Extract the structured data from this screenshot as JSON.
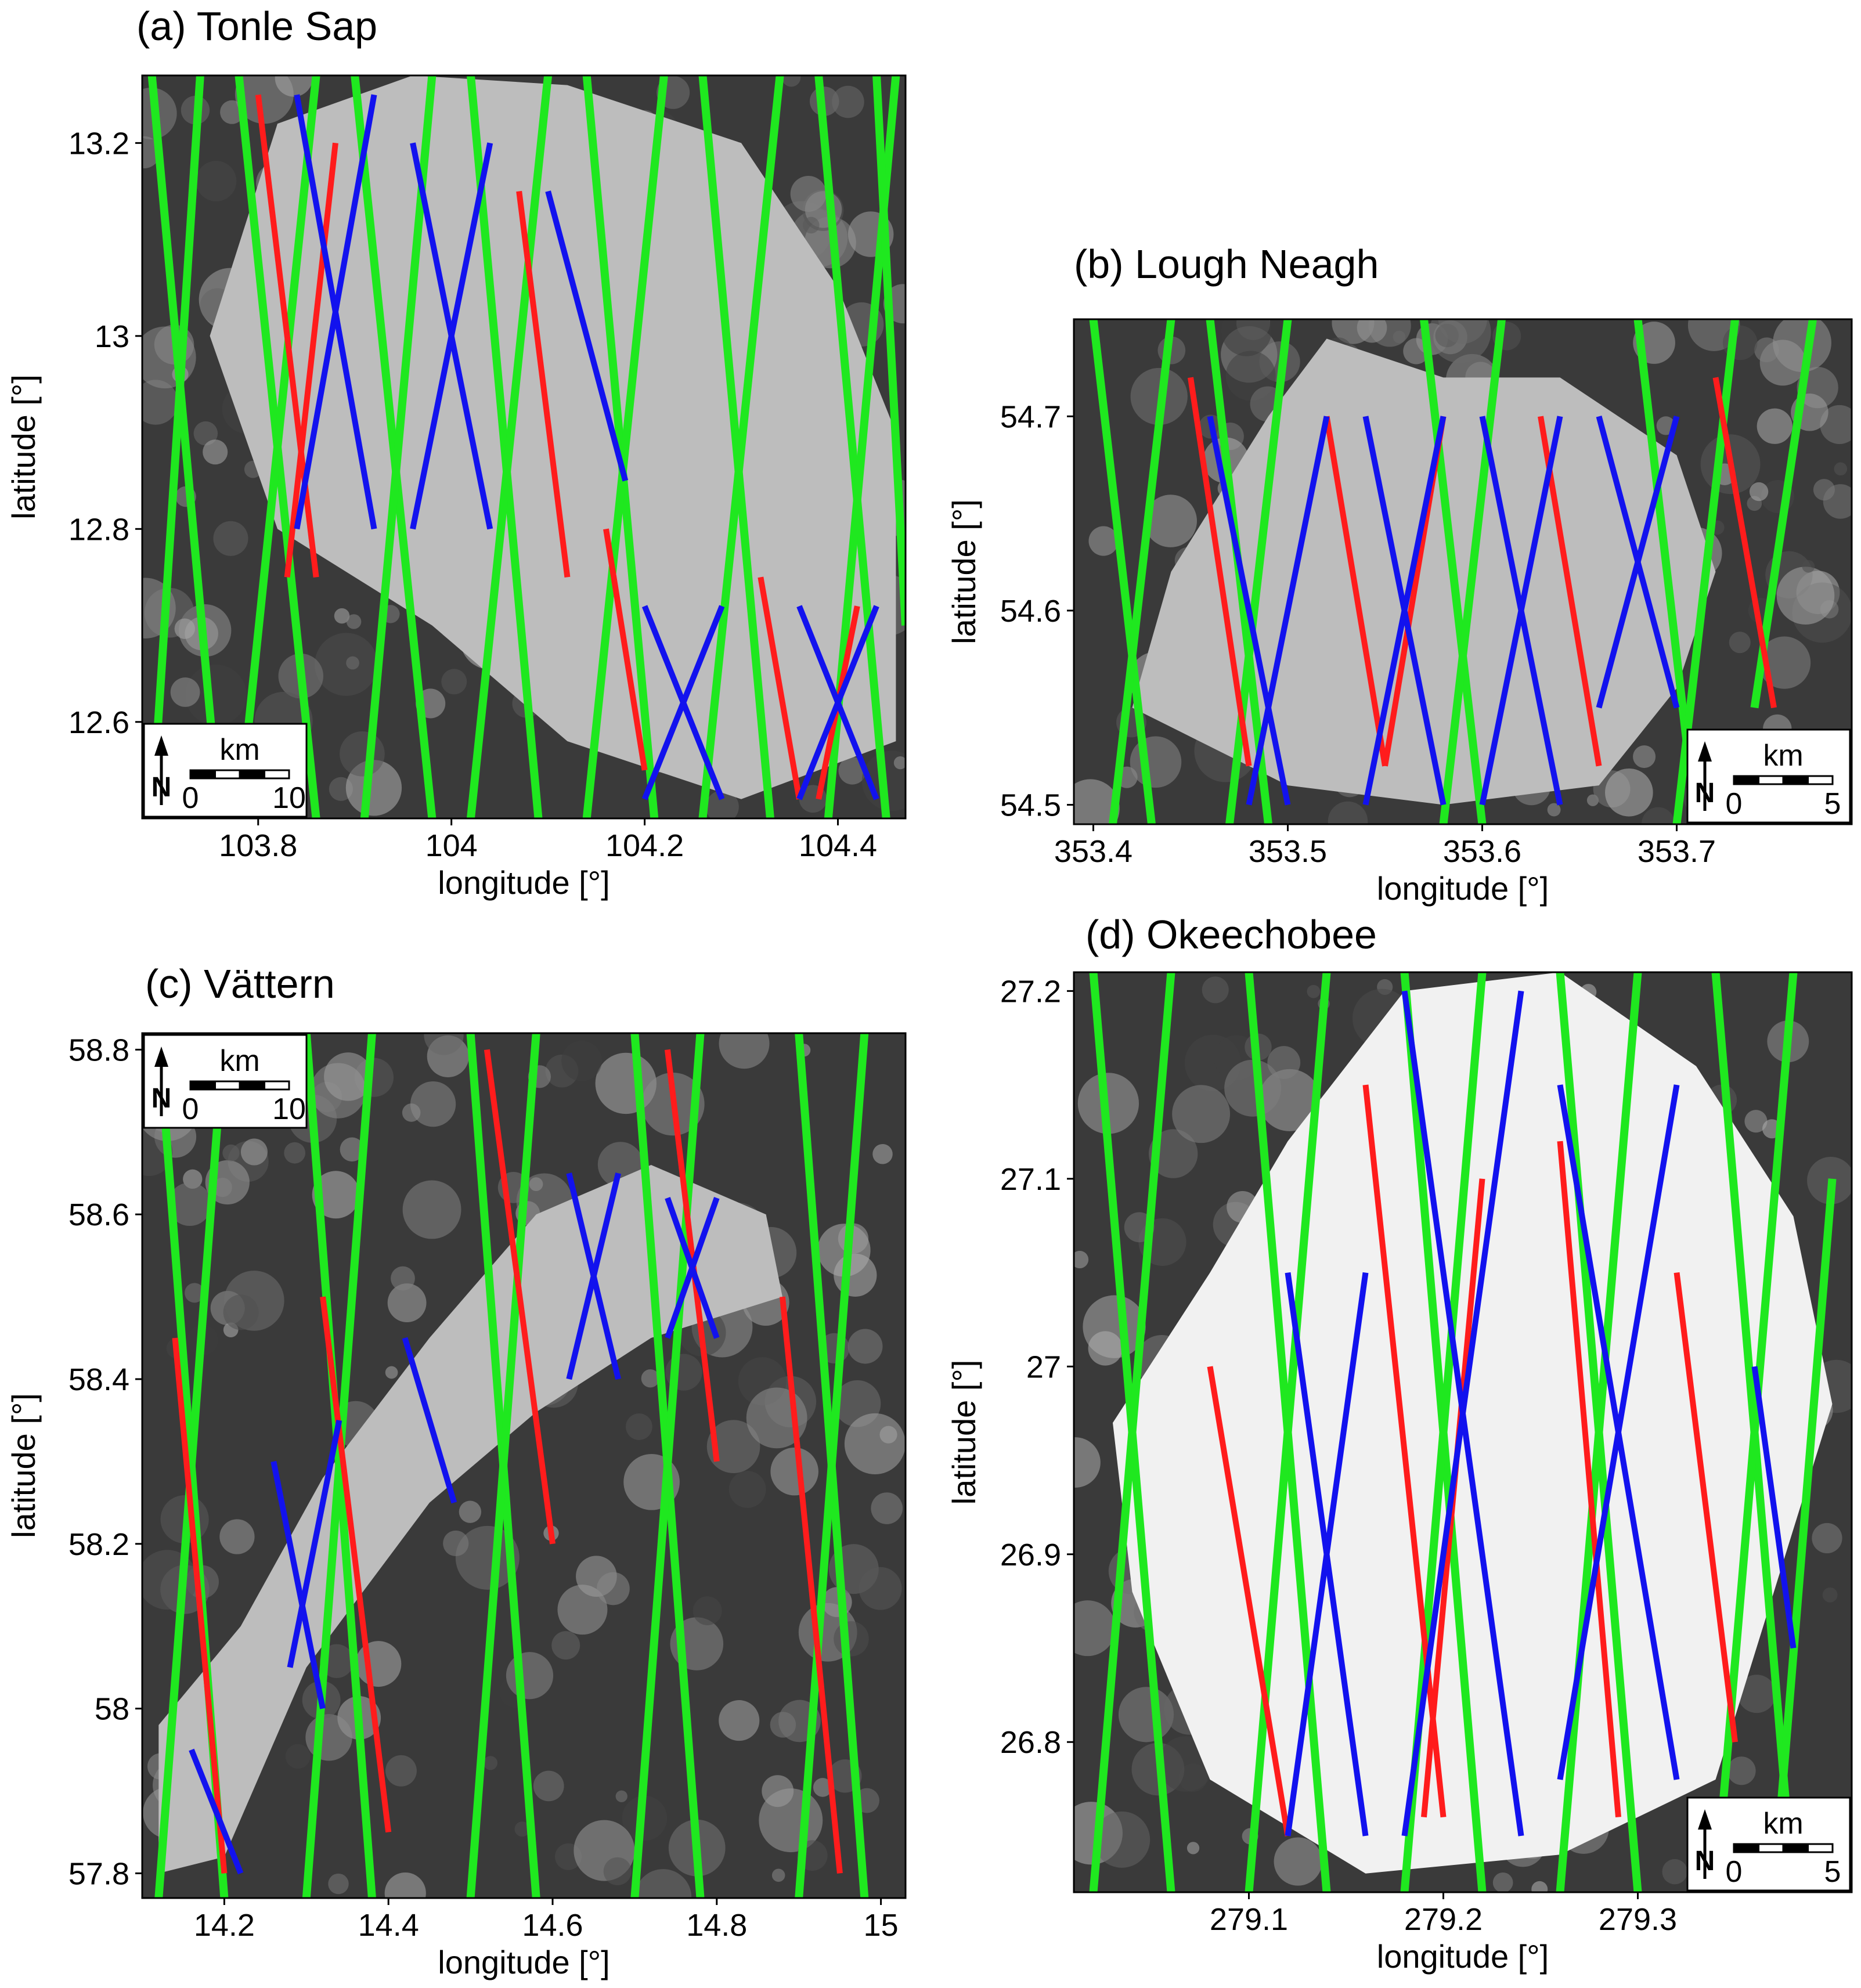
{
  "colors": {
    "green": "#1fe81f",
    "red": "#ff1c1c",
    "blue": "#1212ee"
  },
  "chart_data": [
    {
      "type": "scatter",
      "panel": "a",
      "title": "(a) Tonle Sap",
      "xlabel": "longitude [°]",
      "ylabel": "latitude [°]",
      "xlim": [
        103.68,
        104.47
      ],
      "ylim": [
        12.5,
        13.27
      ],
      "xticks": [
        103.8,
        104,
        104.2,
        104.4
      ],
      "xtick_labels": [
        "103.8",
        "104",
        "104.2",
        "104.4"
      ],
      "yticks": [
        12.6,
        12.8,
        13,
        13.2
      ],
      "ytick_labels": [
        "12.6",
        "12.8",
        "13",
        "13.2"
      ],
      "scalebar": {
        "unit": "km",
        "start_label": "0",
        "end_label": "10",
        "position": "bottom-left"
      },
      "background": "satellite",
      "lake": [
        [
          103.75,
          13.0
        ],
        [
          103.82,
          13.22
        ],
        [
          103.96,
          13.27
        ],
        [
          104.12,
          13.26
        ],
        [
          104.3,
          13.2
        ],
        [
          104.4,
          13.05
        ],
        [
          104.46,
          12.9
        ],
        [
          104.46,
          12.58
        ],
        [
          104.3,
          12.52
        ],
        [
          104.12,
          12.58
        ],
        [
          103.98,
          12.7
        ],
        [
          103.82,
          12.8
        ]
      ],
      "series": [
        {
          "color": "green",
          "tracks": [
            [
              103.69,
              13.27,
              103.76,
              12.5
            ],
            [
              103.74,
              13.27,
              103.69,
              12.5
            ],
            [
              103.78,
              13.27,
              103.86,
              12.5
            ],
            [
              103.86,
              13.27,
              103.78,
              12.5
            ],
            [
              103.9,
              13.27,
              103.98,
              12.5
            ],
            [
              103.98,
              13.27,
              103.91,
              12.5
            ],
            [
              104.02,
              13.27,
              104.09,
              12.5
            ],
            [
              104.1,
              13.27,
              104.02,
              12.5
            ],
            [
              104.14,
              13.27,
              104.21,
              12.5
            ],
            [
              104.22,
              13.27,
              104.14,
              12.5
            ],
            [
              104.26,
              13.27,
              104.33,
              12.5
            ],
            [
              104.34,
              13.27,
              104.26,
              12.5
            ],
            [
              104.38,
              13.27,
              104.45,
              12.5
            ],
            [
              104.46,
              13.27,
              104.39,
              12.5
            ],
            [
              104.44,
              13.27,
              104.47,
              12.7
            ]
          ]
        },
        {
          "color": "red",
          "tracks": [
            [
              103.8,
              13.25,
              103.86,
              12.75
            ],
            [
              103.88,
              13.2,
              103.83,
              12.75
            ],
            [
              104.07,
              13.15,
              104.12,
              12.75
            ],
            [
              104.16,
              12.8,
              104.2,
              12.55
            ],
            [
              104.32,
              12.75,
              104.36,
              12.52
            ],
            [
              104.42,
              12.72,
              104.38,
              12.52
            ]
          ]
        },
        {
          "color": "blue",
          "tracks": [
            [
              103.84,
              13.25,
              103.92,
              12.8
            ],
            [
              103.92,
              13.25,
              103.84,
              12.8
            ],
            [
              103.96,
              13.2,
              104.04,
              12.8
            ],
            [
              104.04,
              13.2,
              103.96,
              12.8
            ],
            [
              104.1,
              13.15,
              104.18,
              12.85
            ],
            [
              104.2,
              12.72,
              104.28,
              12.52
            ],
            [
              104.28,
              12.72,
              104.2,
              12.52
            ],
            [
              104.36,
              12.72,
              104.44,
              12.52
            ],
            [
              104.44,
              12.72,
              104.36,
              12.52
            ]
          ]
        }
      ]
    },
    {
      "type": "scatter",
      "panel": "b",
      "title": "(b) Lough Neagh",
      "xlabel": "longitude [°]",
      "ylabel": "latitude [°]",
      "xlim": [
        353.39,
        353.79
      ],
      "ylim": [
        54.49,
        54.75
      ],
      "xticks": [
        353.4,
        353.5,
        353.6,
        353.7
      ],
      "xtick_labels": [
        "353.4",
        "353.5",
        "353.6",
        "353.7"
      ],
      "yticks": [
        54.5,
        54.6,
        54.7
      ],
      "ytick_labels": [
        "54.5",
        "54.6",
        "54.7"
      ],
      "scalebar": {
        "unit": "km",
        "start_label": "0",
        "end_label": "5",
        "position": "bottom-right"
      },
      "background": "satellite",
      "lake": [
        [
          353.42,
          54.55
        ],
        [
          353.44,
          54.62
        ],
        [
          353.49,
          54.7
        ],
        [
          353.52,
          54.74
        ],
        [
          353.58,
          54.72
        ],
        [
          353.64,
          54.72
        ],
        [
          353.7,
          54.68
        ],
        [
          353.72,
          54.62
        ],
        [
          353.7,
          54.56
        ],
        [
          353.66,
          54.51
        ],
        [
          353.58,
          54.5
        ],
        [
          353.5,
          54.51
        ]
      ],
      "series": [
        {
          "color": "green",
          "tracks": [
            [
              353.4,
              54.75,
              353.43,
              54.49
            ],
            [
              353.44,
              54.75,
              353.41,
              54.49
            ],
            [
              353.46,
              54.75,
              353.49,
              54.49
            ],
            [
              353.5,
              54.75,
              353.47,
              54.49
            ],
            [
              353.57,
              54.75,
              353.6,
              54.49
            ],
            [
              353.61,
              54.75,
              353.58,
              54.49
            ],
            [
              353.68,
              54.75,
              353.71,
              54.49
            ],
            [
              353.73,
              54.75,
              353.7,
              54.49
            ],
            [
              353.77,
              54.75,
              353.74,
              54.55
            ]
          ]
        },
        {
          "color": "red",
          "tracks": [
            [
              353.45,
              54.72,
              353.48,
              54.52
            ],
            [
              353.52,
              54.7,
              353.55,
              54.52
            ],
            [
              353.58,
              54.7,
              353.55,
              54.52
            ],
            [
              353.63,
              54.7,
              353.66,
              54.52
            ],
            [
              353.72,
              54.72,
              353.75,
              54.55
            ]
          ]
        },
        {
          "color": "blue",
          "tracks": [
            [
              353.46,
              54.7,
              353.5,
              54.5
            ],
            [
              353.52,
              54.7,
              353.48,
              54.5
            ],
            [
              353.54,
              54.7,
              353.58,
              54.5
            ],
            [
              353.58,
              54.7,
              353.54,
              54.5
            ],
            [
              353.6,
              54.7,
              353.64,
              54.5
            ],
            [
              353.64,
              54.7,
              353.6,
              54.5
            ],
            [
              353.66,
              54.7,
              353.7,
              54.55
            ],
            [
              353.7,
              54.7,
              353.66,
              54.55
            ]
          ]
        }
      ]
    },
    {
      "type": "scatter",
      "panel": "c",
      "title": "(c) Vättern",
      "xlabel": "longitude [°]",
      "ylabel": "latitude [°]",
      "xlim": [
        14.1,
        15.03
      ],
      "ylim": [
        57.77,
        58.82
      ],
      "xticks": [
        14.2,
        14.4,
        14.6,
        14.8,
        15
      ],
      "xtick_labels": [
        "14.2",
        "14.4",
        "14.6",
        "14.8",
        "15"
      ],
      "yticks": [
        57.8,
        58,
        58.2,
        58.4,
        58.6,
        58.8
      ],
      "ytick_labels": [
        "57.8",
        "58",
        "58.2",
        "58.4",
        "58.6",
        "58.8"
      ],
      "scalebar": {
        "unit": "km",
        "start_label": "0",
        "end_label": "10",
        "position": "top-left"
      },
      "background": "satellite",
      "lake": [
        [
          14.12,
          57.98
        ],
        [
          14.22,
          58.1
        ],
        [
          14.32,
          58.28
        ],
        [
          14.45,
          58.45
        ],
        [
          14.58,
          58.6
        ],
        [
          14.72,
          58.66
        ],
        [
          14.86,
          58.6
        ],
        [
          14.88,
          58.5
        ],
        [
          14.72,
          58.45
        ],
        [
          14.58,
          58.36
        ],
        [
          14.45,
          58.25
        ],
        [
          14.3,
          58.05
        ],
        [
          14.2,
          57.82
        ],
        [
          14.12,
          57.8
        ]
      ],
      "series": [
        {
          "color": "green",
          "tracks": [
            [
              14.12,
              58.82,
              14.2,
              57.77
            ],
            [
              14.3,
              58.82,
              14.38,
              57.77
            ],
            [
              14.38,
              58.82,
              14.3,
              57.77
            ],
            [
              14.5,
              58.82,
              14.58,
              57.77
            ],
            [
              14.58,
              58.82,
              14.5,
              57.77
            ],
            [
              14.7,
              58.82,
              14.78,
              57.77
            ],
            [
              14.78,
              58.82,
              14.7,
              57.77
            ],
            [
              14.9,
              58.82,
              14.98,
              57.77
            ],
            [
              14.98,
              58.82,
              14.9,
              57.77
            ],
            [
              14.2,
              58.82,
              14.12,
              57.77
            ]
          ]
        },
        {
          "color": "red",
          "tracks": [
            [
              14.14,
              58.45,
              14.2,
              57.8
            ],
            [
              14.32,
              58.5,
              14.4,
              57.85
            ],
            [
              14.52,
              58.8,
              14.6,
              58.2
            ],
            [
              14.74,
              58.8,
              14.8,
              58.3
            ],
            [
              14.88,
              58.5,
              14.95,
              57.8
            ]
          ]
        },
        {
          "color": "blue",
          "tracks": [
            [
              14.16,
              57.95,
              14.22,
              57.8
            ],
            [
              14.26,
              58.3,
              14.32,
              58.0
            ],
            [
              14.34,
              58.35,
              14.28,
              58.05
            ],
            [
              14.42,
              58.45,
              14.48,
              58.25
            ],
            [
              14.62,
              58.65,
              14.68,
              58.4
            ],
            [
              14.68,
              58.65,
              14.62,
              58.4
            ],
            [
              14.74,
              58.62,
              14.8,
              58.45
            ],
            [
              14.8,
              58.62,
              14.74,
              58.45
            ]
          ]
        }
      ]
    },
    {
      "type": "scatter",
      "panel": "d",
      "title": "(d) Okeechobee",
      "xlabel": "longitude [°]",
      "ylabel": "latitude [°]",
      "xlim": [
        279.01,
        279.41
      ],
      "ylim": [
        26.72,
        27.21
      ],
      "xticks": [
        279.1,
        279.2,
        279.3
      ],
      "xtick_labels": [
        "279.1",
        "279.2",
        "279.3"
      ],
      "yticks": [
        26.8,
        26.9,
        27,
        27.1,
        27.2
      ],
      "ytick_labels": [
        "26.8",
        "26.9",
        "27",
        "27.1",
        "27.2"
      ],
      "scalebar": {
        "unit": "km",
        "start_label": "0",
        "end_label": "5",
        "position": "bottom-right"
      },
      "background": "satellite",
      "lake": [
        [
          279.03,
          26.97
        ],
        [
          279.08,
          27.05
        ],
        [
          279.12,
          27.12
        ],
        [
          279.18,
          27.2
        ],
        [
          279.26,
          27.21
        ],
        [
          279.33,
          27.16
        ],
        [
          279.38,
          27.08
        ],
        [
          279.4,
          26.98
        ],
        [
          279.37,
          26.88
        ],
        [
          279.34,
          26.78
        ],
        [
          279.26,
          26.74
        ],
        [
          279.16,
          26.73
        ],
        [
          279.08,
          26.78
        ],
        [
          279.04,
          26.88
        ]
      ],
      "series": [
        {
          "color": "green",
          "tracks": [
            [
              279.02,
              27.21,
              279.06,
              26.72
            ],
            [
              279.06,
              27.21,
              279.02,
              26.72
            ],
            [
              279.1,
              27.21,
              279.14,
              26.72
            ],
            [
              279.14,
              27.21,
              279.1,
              26.72
            ],
            [
              279.18,
              27.21,
              279.22,
              26.72
            ],
            [
              279.22,
              27.21,
              279.18,
              26.72
            ],
            [
              279.26,
              27.21,
              279.3,
              26.72
            ],
            [
              279.3,
              27.21,
              279.26,
              26.72
            ],
            [
              279.34,
              27.21,
              279.38,
              26.72
            ],
            [
              279.38,
              27.21,
              279.34,
              26.72
            ],
            [
              279.4,
              27.1,
              279.37,
              26.72
            ]
          ]
        },
        {
          "color": "red",
          "tracks": [
            [
              279.08,
              27.0,
              279.12,
              26.75
            ],
            [
              279.16,
              27.15,
              279.2,
              26.76
            ],
            [
              279.22,
              27.1,
              279.19,
              26.76
            ],
            [
              279.26,
              27.12,
              279.29,
              26.76
            ],
            [
              279.32,
              27.05,
              279.35,
              26.8
            ]
          ]
        },
        {
          "color": "blue",
          "tracks": [
            [
              279.12,
              27.05,
              279.16,
              26.75
            ],
            [
              279.16,
              27.05,
              279.12,
              26.75
            ],
            [
              279.18,
              27.2,
              279.24,
              26.75
            ],
            [
              279.24,
              27.2,
              279.18,
              26.75
            ],
            [
              279.26,
              27.15,
              279.32,
              26.78
            ],
            [
              279.32,
              27.15,
              279.26,
              26.78
            ],
            [
              279.36,
              27.0,
              279.38,
              26.85
            ]
          ]
        }
      ]
    }
  ]
}
